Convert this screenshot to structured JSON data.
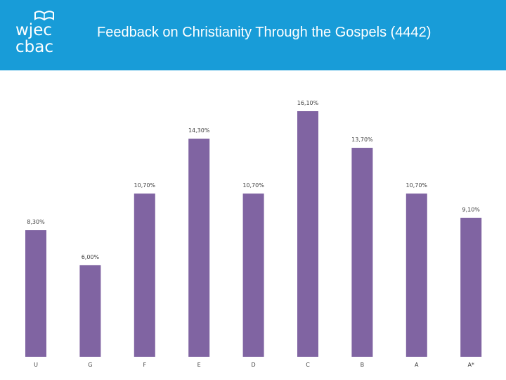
{
  "header": {
    "logo_line1": "wjec",
    "logo_line2": "cbac",
    "logo_icon": "open-book-icon",
    "title": "Feedback on Christianity Through the Gospels (4442)",
    "background": "#189cd8"
  },
  "chart_data": {
    "type": "bar",
    "title": "",
    "xlabel": "",
    "ylabel": "",
    "categories": [
      "U",
      "G",
      "F",
      "E",
      "D",
      "C",
      "B",
      "A",
      "A*"
    ],
    "values": [
      8.3,
      6.0,
      10.7,
      14.3,
      10.7,
      16.1,
      13.7,
      10.7,
      9.1
    ],
    "value_labels": [
      "8,30%",
      "6,00%",
      "10,70%",
      "14,30%",
      "10,70%",
      "16,10%",
      "13,70%",
      "10,70%",
      "9,10%"
    ],
    "unit": "%",
    "ylim": [
      0,
      16.1
    ],
    "bar_color": "#8064a2",
    "grid": false,
    "legend": "none"
  }
}
